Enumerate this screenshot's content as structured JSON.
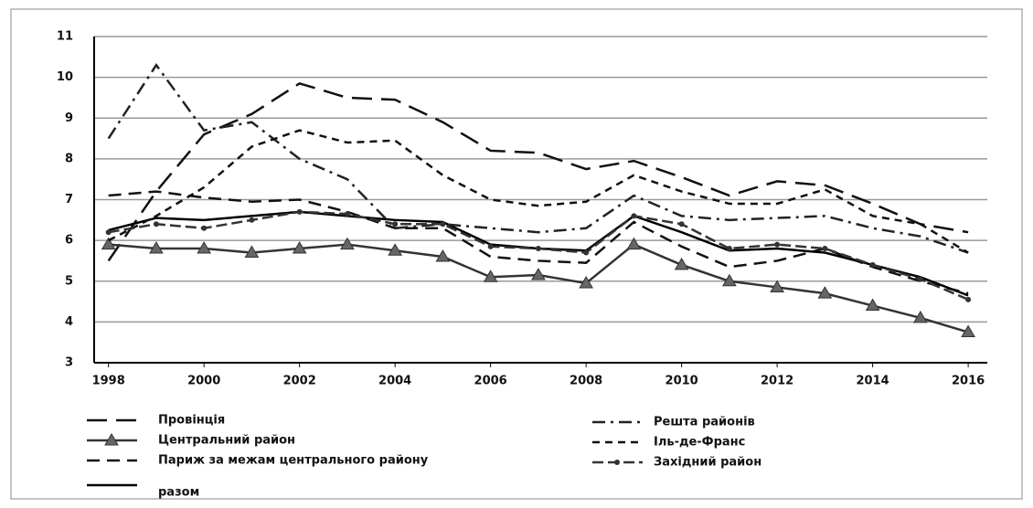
{
  "chart_data": {
    "type": "line",
    "x": [
      1998,
      1999,
      2000,
      2001,
      2002,
      2003,
      2004,
      2005,
      2006,
      2007,
      2008,
      2009,
      2010,
      2011,
      2012,
      2013,
      2014,
      2015,
      2016
    ],
    "xlim": [
      1997.7,
      2016.4
    ],
    "xticks": [
      1998,
      2000,
      2002,
      2004,
      2006,
      2008,
      2010,
      2012,
      2014,
      2016
    ],
    "ylim": [
      3,
      11
    ],
    "yticks": [
      3,
      4,
      5,
      6,
      7,
      8,
      9,
      10,
      11
    ],
    "grid": true,
    "series": [
      {
        "name": "Провінція",
        "color": "#111111",
        "dash": "22,10",
        "marker": "none",
        "values": [
          5.5,
          7.2,
          8.6,
          9.1,
          9.85,
          9.5,
          9.45,
          8.9,
          8.2,
          8.15,
          7.75,
          7.95,
          7.55,
          7.1,
          7.45,
          7.35,
          6.9,
          6.4,
          6.2
        ]
      },
      {
        "name": "Центральний район",
        "color": "#333333",
        "dash": "none",
        "marker": "triangle",
        "values": [
          5.9,
          5.8,
          5.8,
          5.7,
          5.8,
          5.9,
          5.75,
          5.6,
          5.1,
          5.15,
          4.95,
          5.9,
          5.4,
          5.0,
          4.85,
          4.7,
          4.4,
          4.1,
          3.75
        ]
      },
      {
        "name": "Париж за межам центрального району",
        "color": "#111111",
        "dash": "14,8",
        "marker": "none",
        "values": [
          7.1,
          7.2,
          7.05,
          6.95,
          7.0,
          6.7,
          6.3,
          6.3,
          5.6,
          5.5,
          5.45,
          6.45,
          5.85,
          5.35,
          5.5,
          5.8,
          5.35,
          5.0,
          4.7
        ]
      },
      {
        "name": "разом",
        "color": "#000000",
        "dash": "none",
        "marker": "none",
        "values": [
          6.25,
          6.55,
          6.5,
          6.6,
          6.7,
          6.6,
          6.5,
          6.45,
          5.9,
          5.8,
          5.75,
          6.6,
          6.2,
          5.75,
          5.8,
          5.7,
          5.4,
          5.1,
          4.65
        ]
      },
      {
        "name": "Решта районів",
        "color": "#222222",
        "dash": "14,6,3,6",
        "marker": "none",
        "values": [
          8.5,
          10.3,
          8.7,
          8.9,
          8.0,
          7.5,
          6.3,
          6.4,
          6.3,
          6.2,
          6.3,
          7.1,
          6.6,
          6.5,
          6.55,
          6.6,
          6.3,
          6.1,
          5.7
        ]
      },
      {
        "name": "Іль-де-Франс",
        "color": "#111111",
        "dash": "8,6",
        "marker": "none",
        "values": [
          6.0,
          6.6,
          7.3,
          8.3,
          8.7,
          8.4,
          8.45,
          7.6,
          7.0,
          6.85,
          6.95,
          7.6,
          7.2,
          6.9,
          6.9,
          7.25,
          6.6,
          6.4,
          5.7
        ]
      },
      {
        "name": "Західний район",
        "color": "#333333",
        "dash": "12,5",
        "marker": "dot",
        "values": [
          6.2,
          6.4,
          6.3,
          6.5,
          6.7,
          6.65,
          6.4,
          6.4,
          5.85,
          5.8,
          5.7,
          6.6,
          6.4,
          5.8,
          5.9,
          5.8,
          5.4,
          5.05,
          4.55
        ]
      }
    ]
  }
}
